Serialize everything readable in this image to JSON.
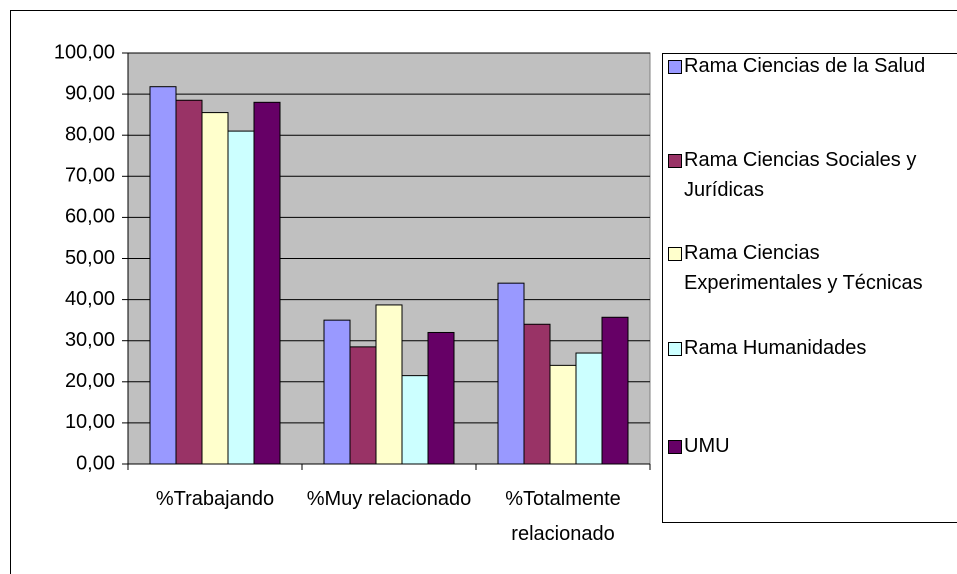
{
  "chart_data": {
    "type": "bar",
    "categories": [
      "%Trabajando",
      "%Muy relacionado",
      "%Totalmente relacionado"
    ],
    "series": [
      {
        "name": "Rama Ciencias de la Salud",
        "color": "#9999ff",
        "values": [
          91.8,
          35,
          44
        ]
      },
      {
        "name": "Rama Ciencias Sociales y Jurídicas",
        "color": "#993366",
        "values": [
          88.5,
          28.5,
          34
        ]
      },
      {
        "name": "Rama Ciencias Experimentales y Técnicas",
        "color": "#ffffcc",
        "values": [
          85.5,
          38.7,
          24
        ]
      },
      {
        "name": "Rama Humanidades",
        "color": "#ccffff",
        "values": [
          81,
          21.5,
          27
        ]
      },
      {
        "name": "UMU",
        "color": "#660066",
        "values": [
          88,
          32,
          35.7
        ]
      }
    ],
    "ylim": [
      0,
      100
    ],
    "yticks": [
      {
        "value": 0,
        "label": "0,00"
      },
      {
        "value": 10,
        "label": "10,00"
      },
      {
        "value": 20,
        "label": "20,00"
      },
      {
        "value": 30,
        "label": "30,00"
      },
      {
        "value": 40,
        "label": "40,00"
      },
      {
        "value": 50,
        "label": "50,00"
      },
      {
        "value": 60,
        "label": "60,00"
      },
      {
        "value": 70,
        "label": "70,00"
      },
      {
        "value": 80,
        "label": "80,00"
      },
      {
        "value": 90,
        "label": "90,00"
      },
      {
        "value": 100,
        "label": "100,00"
      }
    ],
    "grid": true,
    "legend": "right"
  }
}
